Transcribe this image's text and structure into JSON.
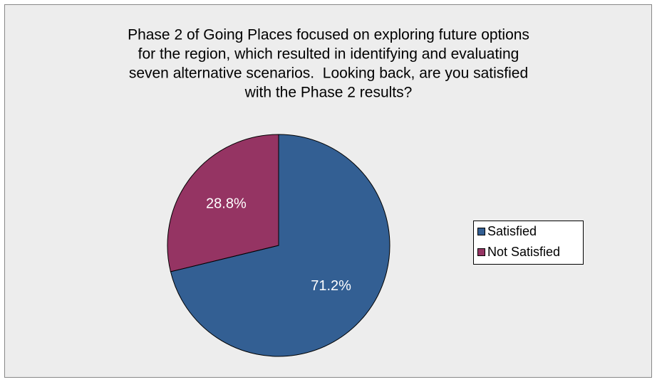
{
  "chart_data": {
    "type": "pie",
    "title": [
      "Phase 2 of Going Places focused on exploring future options",
      "for the region, which resulted in identifying and evaluating",
      "seven alternative scenarios.  Looking back, are you satisfied",
      "with the Phase 2 results?"
    ],
    "categories": [
      "Satisfied",
      "Not Satisfied"
    ],
    "values": [
      71.2,
      28.8
    ],
    "value_labels": [
      "71.2%",
      "28.8%"
    ],
    "colors": [
      "#335f93",
      "#953463"
    ],
    "legend": "right"
  }
}
